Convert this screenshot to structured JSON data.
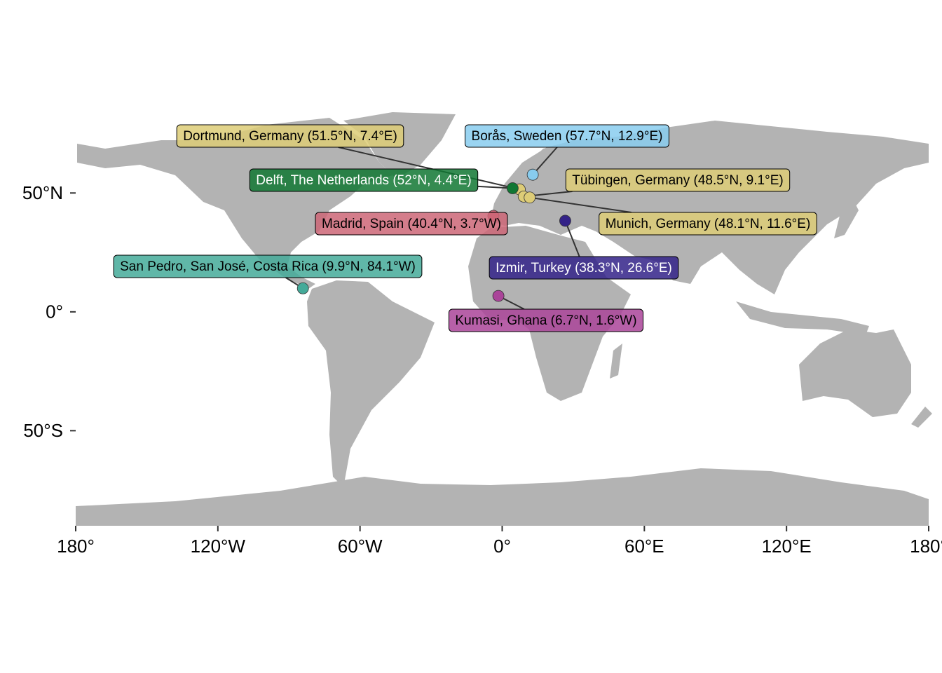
{
  "chart_data": {
    "type": "map",
    "xlim": [
      -180,
      180
    ],
    "ylim": [
      -90,
      84
    ],
    "xticks": [
      {
        "value": -180,
        "label": "180°"
      },
      {
        "value": -120,
        "label": "120°W"
      },
      {
        "value": -60,
        "label": "60°W"
      },
      {
        "value": 0,
        "label": "0°"
      },
      {
        "value": 60,
        "label": "60°E"
      },
      {
        "value": 120,
        "label": "120°E"
      },
      {
        "value": 180,
        "label": "180°"
      }
    ],
    "yticks": [
      {
        "value": 50,
        "label": "50°N"
      },
      {
        "value": 0,
        "label": "0°"
      },
      {
        "value": -50,
        "label": "50°S"
      }
    ],
    "points": [
      {
        "label": "Dortmund, Germany (51.5°N, 7.4°E)",
        "lat": 51.5,
        "lon": 7.4,
        "color": "#ddcc77"
      },
      {
        "label": "Borås, Sweden (57.7°N, 12.9°E)",
        "lat": 57.7,
        "lon": 12.9,
        "color": "#88ccee"
      },
      {
        "label": "Delft, The Netherlands (52°N, 4.4°E)",
        "lat": 52,
        "lon": 4.4,
        "color": "#117733"
      },
      {
        "label": "Tübingen, Germany (48.5°N, 9.1°E)",
        "lat": 48.5,
        "lon": 9.1,
        "color": "#ddcc77"
      },
      {
        "label": "Madrid, Spain (40.4°N, 3.7°W)",
        "lat": 40.4,
        "lon": -3.7,
        "color": "#cc6677"
      },
      {
        "label": "Munich, Germany (48.1°N, 11.6°E)",
        "lat": 48.1,
        "lon": 11.6,
        "color": "#ddcc77"
      },
      {
        "label": "San Pedro, San José, Costa Rica (9.9°N, 84.1°W)",
        "lat": 9.9,
        "lon": -84.1,
        "color": "#44aa99"
      },
      {
        "label": "Izmir, Turkey (38.3°N, 26.6°E)",
        "lat": 38.3,
        "lon": 26.6,
        "color": "#332288"
      },
      {
        "label": "Kumasi, Ghana (6.7°N, 1.6°W)",
        "lat": 6.7,
        "lon": -1.6,
        "color": "#aa4499"
      }
    ]
  }
}
